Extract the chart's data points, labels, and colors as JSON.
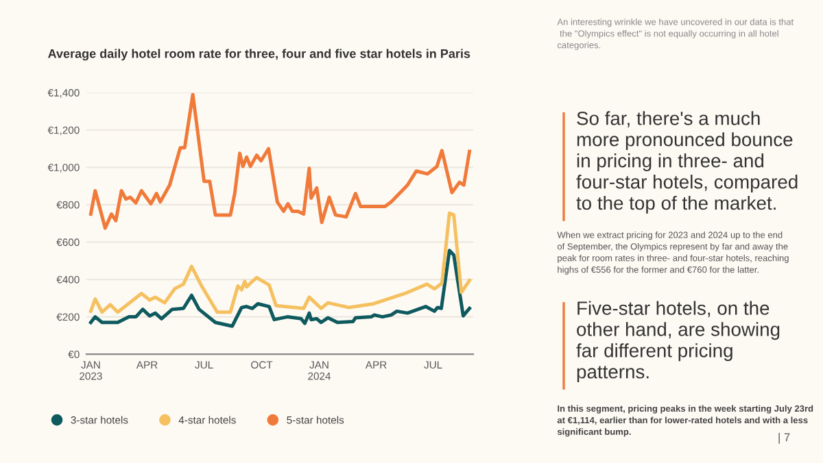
{
  "chart_data": {
    "type": "line",
    "title": "Average daily hotel room rate for three, four and five star hotels in Paris",
    "xlim": [
      "2022-12-25",
      "2024-09-03"
    ],
    "xticks": [
      {
        "value": "2023-01-01",
        "label": "JAN\n2023"
      },
      {
        "value": "2023-04-01",
        "label": "APR"
      },
      {
        "value": "2023-07-01",
        "label": "JUL"
      },
      {
        "value": "2023-10-01",
        "label": "OCT"
      },
      {
        "value": "2024-01-01",
        "label": "JAN\n2024"
      },
      {
        "value": "2024-04-01",
        "label": "APR"
      },
      {
        "value": "2024-07-01",
        "label": "JUL"
      }
    ],
    "ylim": [
      0,
      1400
    ],
    "yticks": [
      {
        "value": 0,
        "label": "€0"
      },
      {
        "value": 200,
        "label": "€200"
      },
      {
        "value": 400,
        "label": "€400"
      },
      {
        "value": 600,
        "label": "€600"
      },
      {
        "value": 800,
        "label": "€800"
      },
      {
        "value": 1000,
        "label": "€1,000"
      },
      {
        "value": 1200,
        "label": "€1,200"
      },
      {
        "value": 1400,
        "label": "€1,400"
      }
    ],
    "grid": "y",
    "legend": "bottom",
    "marker": "none",
    "line_style": "solid",
    "series": [
      {
        "name": "3-star hotels",
        "color": "#0e5a5e",
        "x": [
          "2023-01-01",
          "2023-01-08",
          "2023-01-19",
          "2023-02-13",
          "2023-03-03",
          "2023-03-14",
          "2023-03-25",
          "2023-04-05",
          "2023-04-14",
          "2023-04-24",
          "2023-05-11",
          "2023-05-29",
          "2023-06-11",
          "2023-06-23",
          "2023-07-19",
          "2023-08-15",
          "2023-08-30",
          "2023-09-07",
          "2023-09-16",
          "2023-09-25",
          "2023-10-13",
          "2023-10-21",
          "2023-11-11",
          "2023-12-03",
          "2023-12-09",
          "2023-12-16",
          "2023-12-19",
          "2023-12-28",
          "2024-01-04",
          "2024-01-15",
          "2024-01-30",
          "2024-02-24",
          "2024-02-28",
          "2024-03-24",
          "2024-03-29",
          "2024-04-11",
          "2024-04-25",
          "2024-05-04",
          "2024-05-21",
          "2024-06-19",
          "2024-07-03",
          "2024-07-08",
          "2024-07-14",
          "2024-07-27",
          "2024-08-03",
          "2024-08-18",
          "2024-08-28"
        ],
        "values": [
          170,
          200,
          170,
          170,
          200,
          200,
          240,
          205,
          220,
          190,
          240,
          245,
          315,
          240,
          170,
          150,
          250,
          255,
          245,
          270,
          255,
          185,
          200,
          190,
          165,
          220,
          185,
          190,
          170,
          195,
          170,
          175,
          195,
          200,
          210,
          200,
          210,
          230,
          220,
          255,
          230,
          250,
          245,
          555,
          530,
          205,
          245
        ]
      },
      {
        "name": "4-star hotels",
        "color": "#f5c060",
        "x": [
          "2023-01-01",
          "2023-01-08",
          "2023-01-19",
          "2023-02-01",
          "2023-02-13",
          "2023-03-23",
          "2023-04-05",
          "2023-04-14",
          "2023-04-29",
          "2023-05-15",
          "2023-05-29",
          "2023-06-11",
          "2023-06-27",
          "2023-07-22",
          "2023-08-12",
          "2023-08-24",
          "2023-08-30",
          "2023-09-04",
          "2023-09-07",
          "2023-09-13",
          "2023-09-23",
          "2023-10-13",
          "2023-10-24",
          "2023-12-07",
          "2023-12-16",
          "2024-01-04",
          "2024-01-15",
          "2024-02-17",
          "2024-03-28",
          "2024-05-17",
          "2024-06-21",
          "2024-07-03",
          "2024-07-15",
          "2024-07-27",
          "2024-08-03",
          "2024-08-15",
          "2024-08-28"
        ],
        "values": [
          230,
          295,
          225,
          265,
          225,
          325,
          290,
          305,
          275,
          350,
          375,
          470,
          365,
          225,
          225,
          365,
          345,
          390,
          360,
          380,
          410,
          370,
          260,
          245,
          305,
          245,
          275,
          250,
          270,
          325,
          375,
          350,
          380,
          755,
          745,
          330,
          395
        ]
      },
      {
        "name": "5-star hotels",
        "color": "#f07a3a",
        "x": [
          "2023-01-01",
          "2023-01-08",
          "2023-01-24",
          "2023-02-03",
          "2023-02-10",
          "2023-02-19",
          "2023-02-26",
          "2023-03-05",
          "2023-03-14",
          "2023-03-23",
          "2023-04-07",
          "2023-04-16",
          "2023-04-22",
          "2023-05-07",
          "2023-05-24",
          "2023-05-31",
          "2023-06-13",
          "2023-07-01",
          "2023-07-10",
          "2023-07-19",
          "2023-08-12",
          "2023-08-19",
          "2023-08-27",
          "2023-09-01",
          "2023-09-07",
          "2023-09-13",
          "2023-09-23",
          "2023-09-30",
          "2023-10-12",
          "2023-10-26",
          "2023-11-05",
          "2023-11-12",
          "2023-11-19",
          "2023-11-28",
          "2023-12-07",
          "2023-12-16",
          "2023-12-19",
          "2023-12-28",
          "2024-01-05",
          "2024-01-17",
          "2024-01-27",
          "2024-02-13",
          "2024-02-28",
          "2024-03-07",
          "2024-04-15",
          "2024-04-25",
          "2024-05-21",
          "2024-06-04",
          "2024-06-22",
          "2024-07-07",
          "2024-07-15",
          "2024-07-31",
          "2024-08-12",
          "2024-08-19",
          "2024-08-28"
        ],
        "values": [
          750,
          875,
          675,
          750,
          715,
          875,
          830,
          840,
          810,
          875,
          805,
          860,
          815,
          905,
          1105,
          1105,
          1390,
          925,
          925,
          745,
          745,
          860,
          1075,
          1005,
          1055,
          1005,
          1065,
          1035,
          1100,
          815,
          765,
          805,
          765,
          765,
          750,
          995,
          835,
          890,
          705,
          840,
          745,
          735,
          860,
          790,
          790,
          815,
          905,
          980,
          965,
          1005,
          1090,
          865,
          920,
          905,
          1085
        ]
      }
    ],
    "annotations": [
      "An interesting wrinkle we have uncovered in our data is that\n the \"Olympics effect\" is not equally occurring in all hotel\ncategories.",
      "So far, there's a much\nmore pronounced bounce\nin pricing in three- and\nfour-star hotels, compared\nto the top of the market.",
      "When we extract pricing for 2023 and 2024 up to the end\nof September, the Olympics represent by far and away the\npeak for room rates in three- and four-star hotels, reaching\nhighs of €556 for the former and €760 for the latter.",
      "Five-star hotels, on the\nother hand, are showing\nfar different pricing\npatterns.",
      "In this segment, pricing peaks in the week starting July 23rd\nat €1,114, earlier than for lower-rated hotels and with a less\nsignificant bump.",
      "| 7"
    ]
  }
}
